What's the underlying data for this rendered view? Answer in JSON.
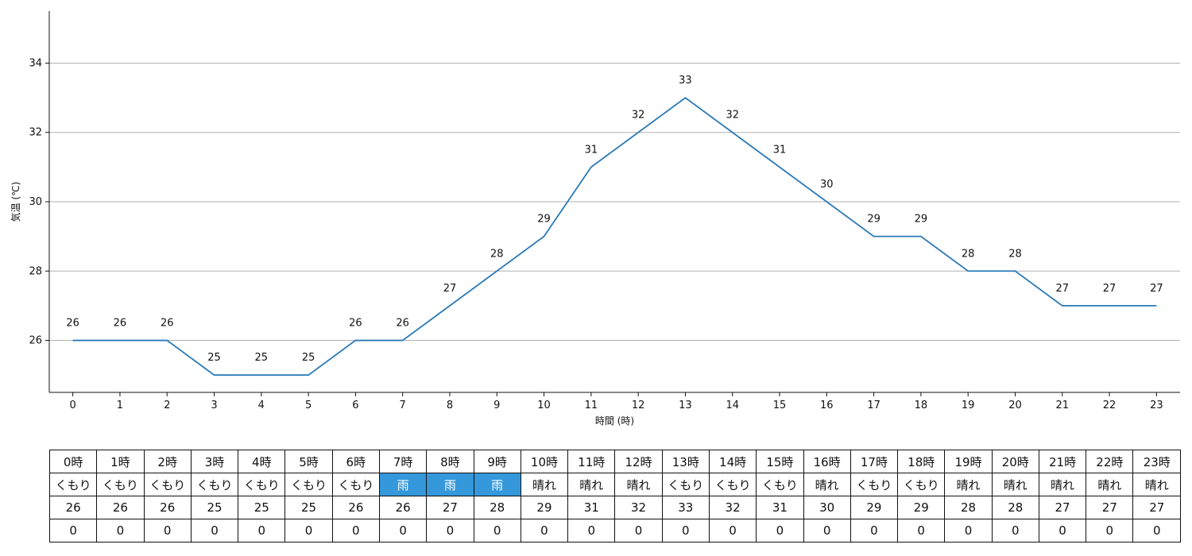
{
  "chart_data": {
    "type": "line",
    "x": [
      0,
      1,
      2,
      3,
      4,
      5,
      6,
      7,
      8,
      9,
      10,
      11,
      12,
      13,
      14,
      15,
      16,
      17,
      18,
      19,
      20,
      21,
      22,
      23
    ],
    "series": [
      {
        "values": [
          26,
          26,
          26,
          25,
          25,
          25,
          26,
          26,
          27,
          28,
          29,
          31,
          32,
          33,
          32,
          31,
          30,
          29,
          29,
          28,
          28,
          27,
          27,
          27
        ]
      }
    ],
    "xlabel": "時間 (時)",
    "ylabel": "気温 (℃)",
    "xlim": [
      -0.5,
      23.5
    ],
    "ylim": [
      24.5,
      35.5
    ],
    "yticks": [
      26,
      28,
      30,
      32,
      34
    ],
    "grid": "horizontal",
    "line_color": "#2a7ab8",
    "data_labels": true
  },
  "table": {
    "hours": [
      "0時",
      "1時",
      "2時",
      "3時",
      "4時",
      "5時",
      "6時",
      "7時",
      "8時",
      "9時",
      "10時",
      "11時",
      "12時",
      "13時",
      "14時",
      "15時",
      "16時",
      "17時",
      "18時",
      "19時",
      "20時",
      "21時",
      "22時",
      "23時"
    ],
    "weather": [
      "くもり",
      "くもり",
      "くもり",
      "くもり",
      "くもり",
      "くもり",
      "くもり",
      "雨",
      "雨",
      "雨",
      "晴れ",
      "晴れ",
      "晴れ",
      "くもり",
      "くもり",
      "くもり",
      "晴れ",
      "くもり",
      "くもり",
      "晴れ",
      "晴れ",
      "晴れ",
      "晴れ",
      "晴れ"
    ],
    "temperature": [
      "26",
      "26",
      "26",
      "25",
      "25",
      "25",
      "26",
      "26",
      "27",
      "28",
      "29",
      "31",
      "32",
      "33",
      "32",
      "31",
      "30",
      "29",
      "29",
      "28",
      "28",
      "27",
      "27",
      "27"
    ],
    "precipitation": [
      "0",
      "0",
      "0",
      "0",
      "0",
      "0",
      "0",
      "0",
      "0",
      "0",
      "0",
      "0",
      "0",
      "0",
      "0",
      "0",
      "0",
      "0",
      "0",
      "0",
      "0",
      "0",
      "0",
      "0"
    ],
    "rain_color": "#3498db"
  }
}
